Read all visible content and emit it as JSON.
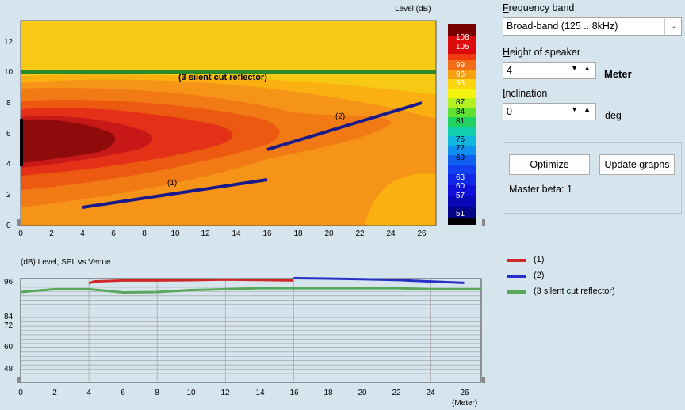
{
  "heatmap": {
    "title": "Level (dB)",
    "x_ticks": [
      "0",
      "2",
      "4",
      "6",
      "8",
      "10",
      "12",
      "14",
      "16",
      "18",
      "20",
      "22",
      "24",
      "26"
    ],
    "y_ticks": [
      "0",
      "2",
      "4",
      "6",
      "8",
      "10",
      "12"
    ],
    "reflector_label": "(3 silent cut reflector)",
    "line1_label": "(1)",
    "line2_label": "(2)",
    "colors": {
      "reflector": "#2a8a2a",
      "line": "#1a1a8a",
      "speaker": "#000000"
    }
  },
  "colorbar": {
    "labels": [
      "108",
      "105",
      "99",
      "96",
      "93",
      "87",
      "84",
      "81",
      "75",
      "72",
      "69",
      "63",
      "60",
      "57",
      "51"
    ]
  },
  "graph": {
    "title": "(dB)  Level, SPL vs Venue",
    "x_ticks": [
      "0",
      "2",
      "4",
      "6",
      "8",
      "10",
      "12",
      "14",
      "16",
      "18",
      "20",
      "22",
      "24",
      "26"
    ],
    "y_ticks": [
      "96",
      "84",
      "72",
      "60",
      "48"
    ],
    "x_unit": "(Meter)"
  },
  "legend": {
    "items": [
      {
        "label": "(1)",
        "color": "#d02828"
      },
      {
        "label": "(2)",
        "color": "#2830c8"
      },
      {
        "label": "(3 silent cut reflector)",
        "color": "#58a858"
      }
    ]
  },
  "controls": {
    "frequency_band": {
      "label": "Frequency band",
      "accel": "F",
      "rest": "requency band",
      "value": "Broad-band (125 .. 8kHz)"
    },
    "height": {
      "accel": "H",
      "rest": "eight of speaker",
      "value": "4",
      "unit": "Meter"
    },
    "inclination": {
      "accel": "I",
      "rest": "nclination",
      "value": "0",
      "unit": "deg"
    },
    "optimize": {
      "accel": "O",
      "rest": "ptimize"
    },
    "update": {
      "accel": "U",
      "rest": "pdate graphs"
    },
    "master_beta": "Master beta: 1"
  },
  "chart_data": [
    {
      "type": "heatmap",
      "title": "Level (dB)",
      "xlabel": "",
      "ylabel": "",
      "xlim": [
        0,
        27
      ],
      "ylim": [
        0,
        13.5
      ],
      "colorbar_levels": [
        108,
        105,
        99,
        96,
        93,
        87,
        84,
        81,
        75,
        72,
        69,
        63,
        60,
        57,
        51
      ],
      "series": [
        {
          "name": "(1)",
          "x": [
            4,
            16
          ],
          "y": [
            1.2,
            3.0
          ]
        },
        {
          "name": "(2)",
          "x": [
            16,
            26
          ],
          "y": [
            5.0,
            8.0
          ]
        },
        {
          "name": "(3 silent cut reflector)",
          "x": [
            0,
            27
          ],
          "y": [
            10,
            10
          ]
        }
      ]
    },
    {
      "type": "line",
      "title": "(dB)  Level, SPL vs Venue",
      "xlabel": "(Meter)",
      "ylabel": "(dB)",
      "xlim": [
        0,
        27
      ],
      "ylim": [
        43,
        97
      ],
      "series": [
        {
          "name": "(1)",
          "x": [
            4,
            4.3,
            6,
            8,
            10,
            12,
            14,
            16
          ],
          "y": [
            94.5,
            95.5,
            96,
            96,
            96.2,
            96.5,
            96.3,
            96
          ]
        },
        {
          "name": "(2)",
          "x": [
            16,
            18,
            20,
            22,
            24,
            26
          ],
          "y": [
            97.2,
            97,
            96.7,
            96.3,
            95.5,
            94.8
          ]
        },
        {
          "name": "(3 silent cut reflector)",
          "x": [
            0,
            2,
            4,
            6,
            8,
            10,
            12,
            14,
            16,
            18,
            20,
            22,
            24,
            26,
            27
          ],
          "y": [
            90,
            91.5,
            91.5,
            89.8,
            90,
            91,
            91.5,
            92,
            92,
            92,
            92,
            92,
            91.5,
            91.5,
            91.5
          ]
        }
      ]
    }
  ]
}
